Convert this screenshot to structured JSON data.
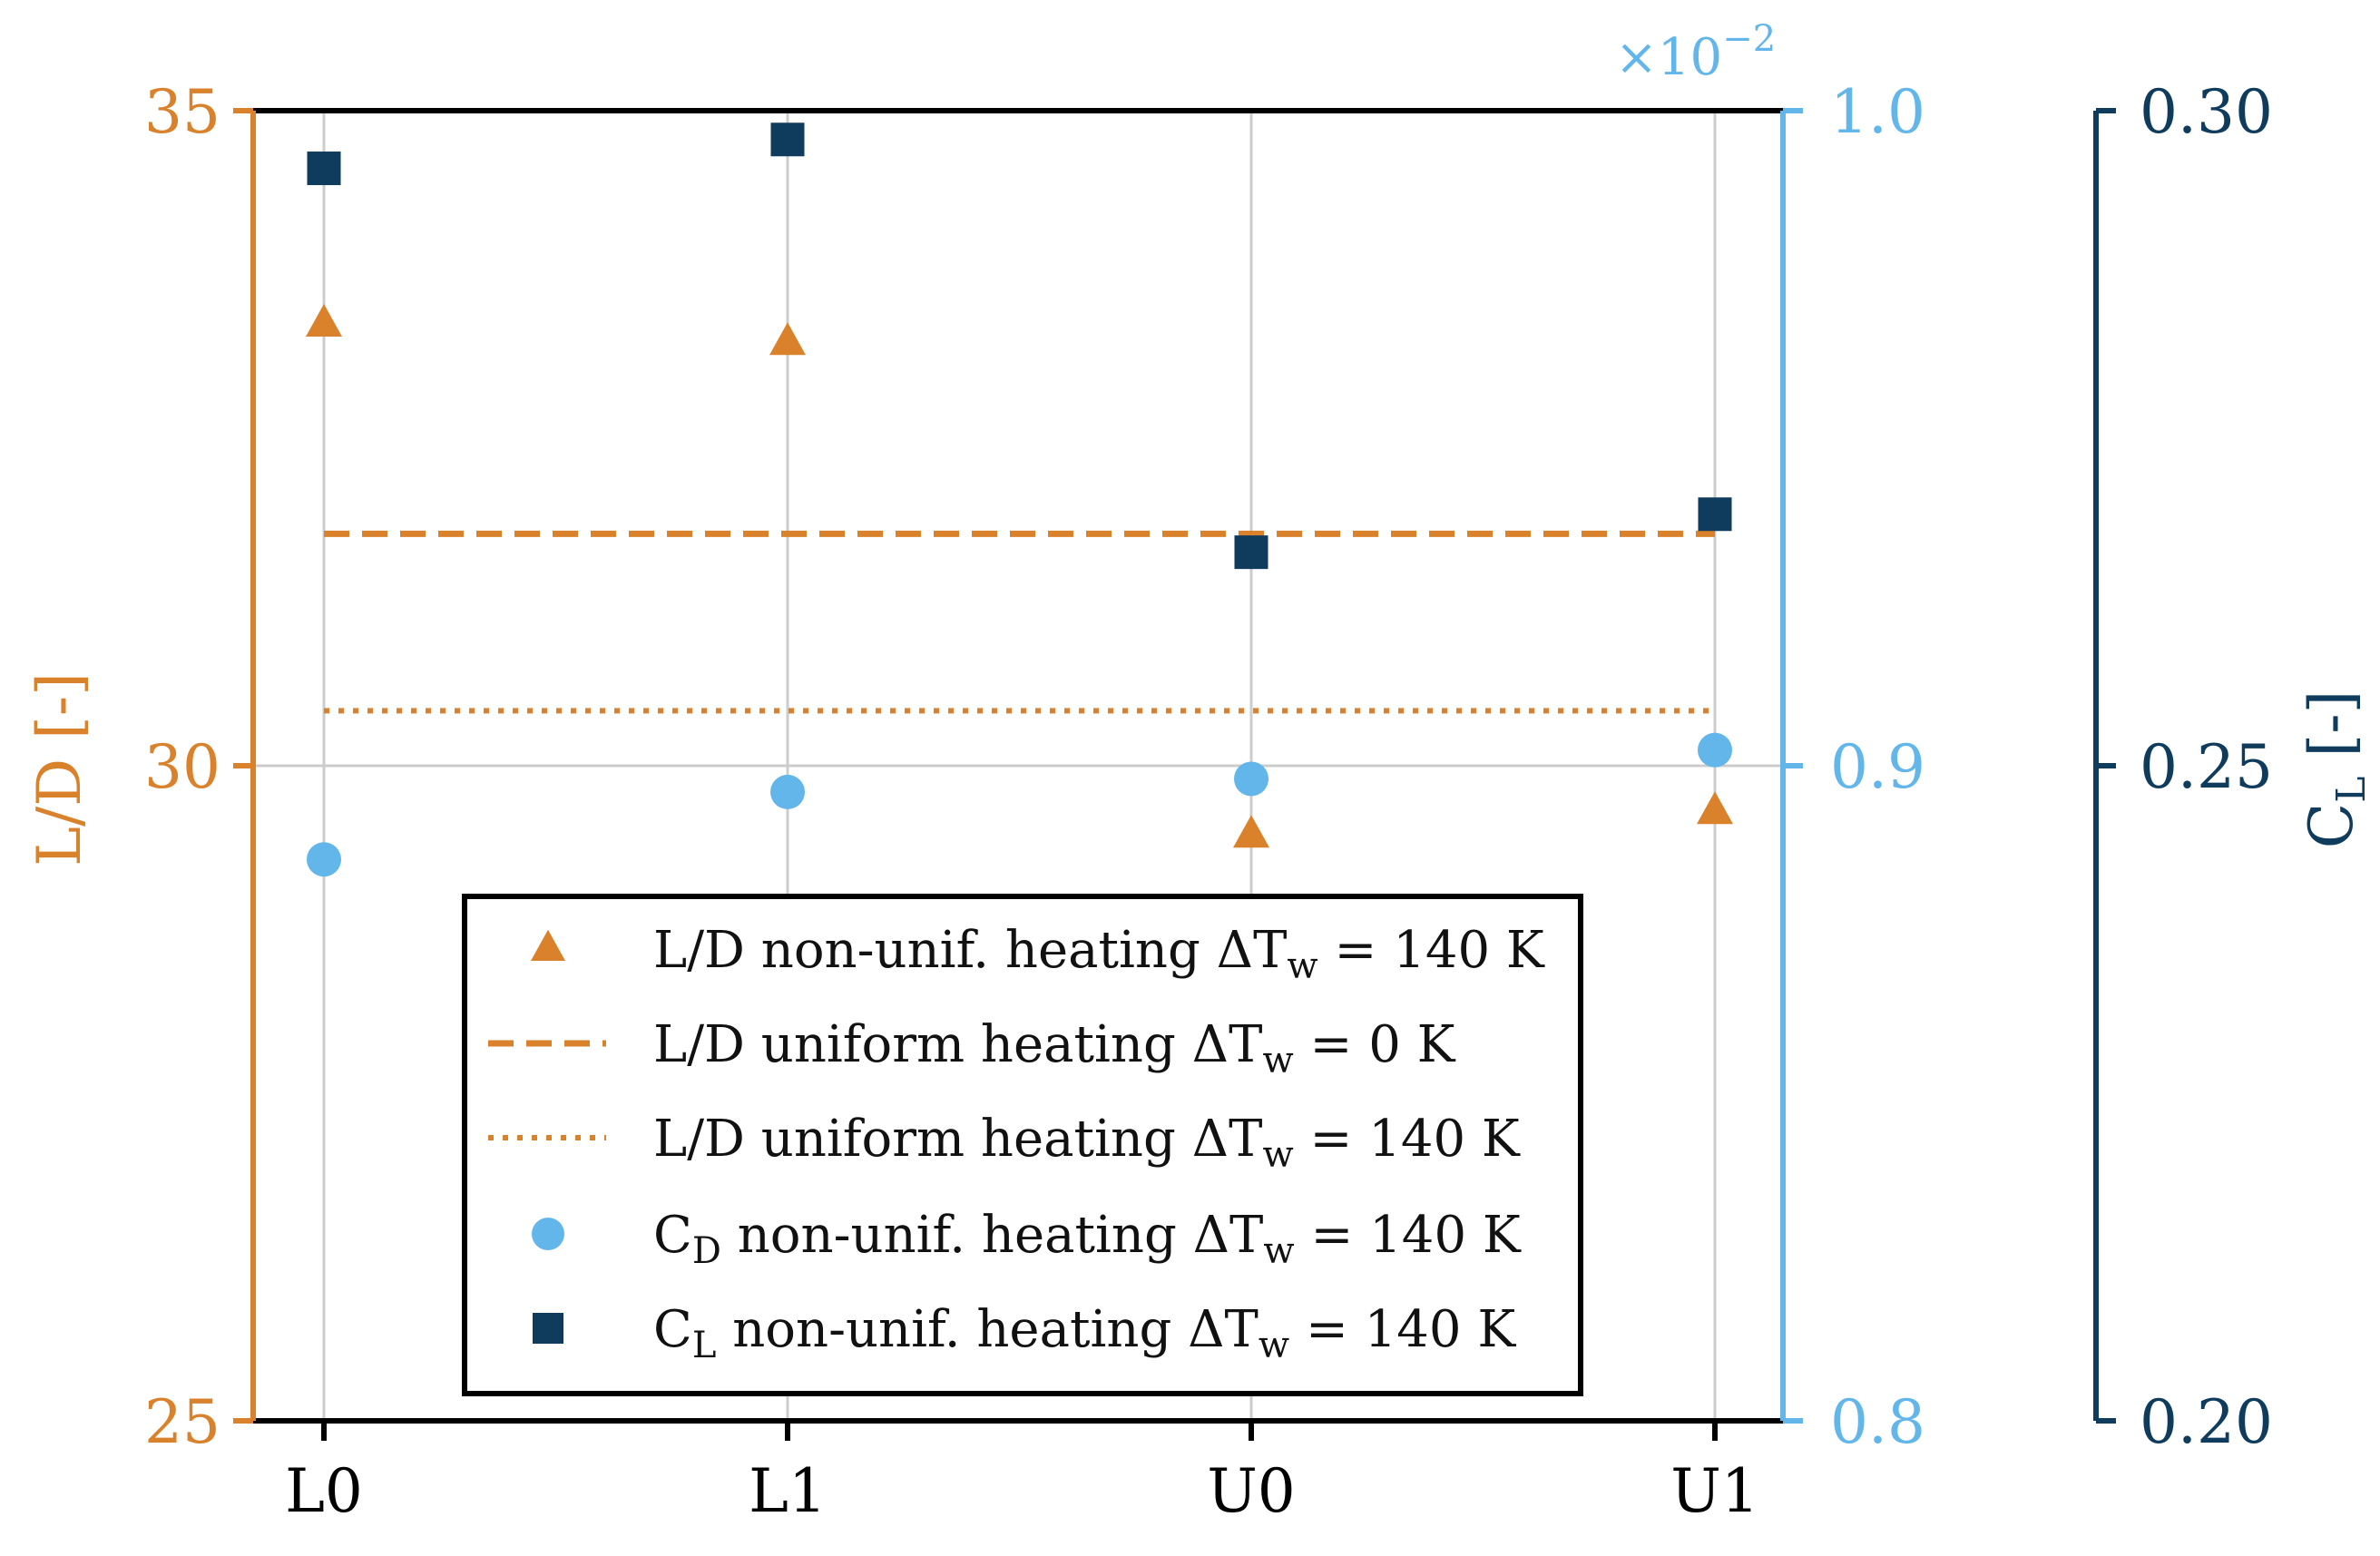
{
  "colors": {
    "orange": "#d9822b",
    "light_blue": "#62b6ea",
    "navy": "#0f3b5c",
    "frame": "#000000",
    "grid": "#cccccc"
  },
  "chart_data": {
    "type": "scatter",
    "categories": [
      "L0",
      "L1",
      "U0",
      "U1"
    ],
    "axes": {
      "left": {
        "label": "L/D [-]",
        "range": [
          25,
          35
        ],
        "ticks": [
          {
            "value": 25,
            "label": "25"
          },
          {
            "value": 30,
            "label": "30"
          },
          {
            "value": 35,
            "label": "35"
          }
        ]
      },
      "right1": {
        "range": [
          0.8,
          1.0
        ],
        "multiplier": "×10",
        "multiplier_exp": "−2",
        "ticks": [
          {
            "value": 0.8,
            "label": "0.8"
          },
          {
            "value": 0.9,
            "label": "0.9"
          },
          {
            "value": 1.0,
            "label": "1.0"
          }
        ]
      },
      "right2": {
        "label_main": "C",
        "label_sub": "L",
        "label_tail": " [-]",
        "range": [
          0.2,
          0.3
        ],
        "ticks": [
          {
            "value": 0.2,
            "label": "0.20"
          },
          {
            "value": 0.25,
            "label": "0.25"
          },
          {
            "value": 0.3,
            "label": "0.30"
          }
        ]
      }
    },
    "series": [
      {
        "id": "ld_nonunif",
        "name": "L/D non-unif. heating ΔTw = 140 K",
        "axis": "left",
        "marker": "triangle",
        "values": [
          33.37,
          33.23,
          29.47,
          29.65
        ]
      },
      {
        "id": "ld_uniform0",
        "name": "L/D uniform heating ΔTw = 0 K",
        "axis": "left",
        "line": "dashed",
        "value": 31.77
      },
      {
        "id": "ld_uniform140",
        "name": "L/D uniform heating ΔTw = 140 K",
        "axis": "left",
        "line": "dotted",
        "value": 30.42
      },
      {
        "id": "cd_nonunif",
        "name": "CD non-unif. heating ΔTw = 140 K",
        "axis": "right1",
        "marker": "circle",
        "values": [
          0.8857,
          0.896,
          0.898,
          0.9024
        ]
      },
      {
        "id": "cl_nonunif",
        "name": "CL non-unif. heating ΔTw = 140 K",
        "axis": "right2",
        "marker": "square",
        "values": [
          0.2956,
          0.2978,
          0.2663,
          0.2692
        ]
      }
    ],
    "legend": {
      "placement": "lower-center",
      "entries": [
        {
          "pre": "L/D non-unif. heating ΔT",
          "sub": "w",
          "post": " = 140 K"
        },
        {
          "pre": "L/D uniform heating ΔT",
          "sub": "w",
          "post": " = 0 K"
        },
        {
          "pre": "L/D uniform heating ΔT",
          "sub": "w",
          "post": " = 140 K"
        },
        {
          "pre": "C",
          "sub": "D",
          "mid": " non-unif. heating ΔT",
          "sub2": "w",
          "post": " = 140 K"
        },
        {
          "pre": "C",
          "sub": "L",
          "mid": " non-unif. heating ΔT",
          "sub2": "w",
          "post": " = 140 K"
        }
      ]
    },
    "grid": true
  }
}
